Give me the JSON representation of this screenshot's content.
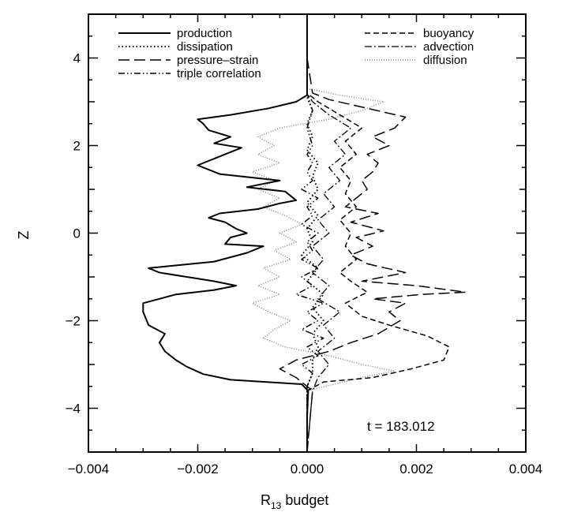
{
  "chart_data": {
    "type": "line",
    "title": "",
    "xlabel": "R",
    "xlabel_sub": "13",
    "xlabel_rest": " budget",
    "ylabel": "Z",
    "xlim": [
      -0.004,
      0.004
    ],
    "ylim": [
      -5,
      5
    ],
    "xticks": [
      -0.004,
      -0.002,
      0.0,
      0.002,
      0.004
    ],
    "xtick_labels": [
      "−0.004",
      "−0.002",
      "0.000",
      "0.002",
      "0.004"
    ],
    "yticks": [
      -4,
      -2,
      0,
      2,
      4
    ],
    "ytick_labels": [
      "−4",
      "−2",
      "0",
      "2",
      "4"
    ],
    "grid": false,
    "legend_placement": "top",
    "annotation": "t = 183.012",
    "series": [
      {
        "name": "production",
        "style": "solid",
        "points": [
          [
            0.0,
            -5.0
          ],
          [
            0.0,
            -4.2
          ],
          [
            2e-05,
            -3.6
          ],
          [
            -0.0001,
            -3.45
          ],
          [
            -0.0014,
            -3.35
          ],
          [
            -0.0019,
            -3.22
          ],
          [
            -0.0022,
            -3.05
          ],
          [
            -0.0024,
            -2.9
          ],
          [
            -0.0026,
            -2.7
          ],
          [
            -0.0027,
            -2.5
          ],
          [
            -0.0026,
            -2.3
          ],
          [
            -0.0029,
            -2.1
          ],
          [
            -0.003,
            -1.8
          ],
          [
            -0.003,
            -1.6
          ],
          [
            -0.0027,
            -1.5
          ],
          [
            -0.0024,
            -1.4
          ],
          [
            -0.0017,
            -1.3
          ],
          [
            -0.0013,
            -1.2
          ],
          [
            -0.0017,
            -1.1
          ],
          [
            -0.0022,
            -1.0
          ],
          [
            -0.0027,
            -0.9
          ],
          [
            -0.0029,
            -0.8
          ],
          [
            -0.0025,
            -0.75
          ],
          [
            -0.0017,
            -0.65
          ],
          [
            -0.0011,
            -0.45
          ],
          [
            -0.0008,
            -0.3
          ],
          [
            -0.0015,
            -0.25
          ],
          [
            -0.0014,
            -0.1
          ],
          [
            -0.0011,
            0.0
          ],
          [
            -0.0013,
            0.1
          ],
          [
            -0.0015,
            0.25
          ],
          [
            -0.0018,
            0.35
          ],
          [
            -0.0016,
            0.45
          ],
          [
            -0.0009,
            0.55
          ],
          [
            -0.0005,
            0.68
          ],
          [
            -0.0002,
            0.75
          ],
          [
            -0.0004,
            0.95
          ],
          [
            -0.0011,
            1.05
          ],
          [
            -0.0005,
            1.2
          ],
          [
            -0.0016,
            1.35
          ],
          [
            -0.002,
            1.55
          ],
          [
            -0.0015,
            1.8
          ],
          [
            -0.0012,
            1.95
          ],
          [
            -0.0017,
            2.05
          ],
          [
            -0.0014,
            2.2
          ],
          [
            -0.0018,
            2.35
          ],
          [
            -0.0019,
            2.5
          ],
          [
            -0.002,
            2.6
          ],
          [
            -0.0014,
            2.7
          ],
          [
            -0.0007,
            2.85
          ],
          [
            -0.0002,
            3.0
          ],
          [
            0.0,
            3.15
          ],
          [
            0.0,
            4.0
          ],
          [
            0.0,
            5.0
          ]
        ]
      },
      {
        "name": "dissipation",
        "style": "dotted",
        "points": [
          [
            0.0,
            -5.0
          ],
          [
            0.0,
            -3.5
          ],
          [
            0.0001,
            -3.2
          ],
          [
            0.0001,
            -2.9
          ],
          [
            0.0002,
            -2.6
          ],
          [
            0.0001,
            -2.3
          ],
          [
            0.0003,
            -2.0
          ],
          [
            0.0001,
            -1.7
          ],
          [
            0.0003,
            -1.4
          ],
          [
            0.0,
            -1.1
          ],
          [
            0.0002,
            -0.8
          ],
          [
            -0.0001,
            -0.5
          ],
          [
            0.0001,
            -0.2
          ],
          [
            0.0,
            0.1
          ],
          [
            0.0002,
            0.4
          ],
          [
            0.0,
            0.7
          ],
          [
            0.0002,
            1.0
          ],
          [
            0.0001,
            1.3
          ],
          [
            0.0002,
            1.6
          ],
          [
            0.0,
            1.9
          ],
          [
            0.0001,
            2.2
          ],
          [
            0.0,
            2.5
          ],
          [
            0.0001,
            2.8
          ],
          [
            0.0,
            3.1
          ],
          [
            0.0,
            4.0
          ],
          [
            0.0,
            5.0
          ]
        ]
      },
      {
        "name": "pressure–strain",
        "style": "longdash",
        "points": [
          [
            0.0,
            -5.0
          ],
          [
            0.0001,
            -3.6
          ],
          [
            -0.0002,
            -3.3
          ],
          [
            -0.0005,
            -3.1
          ],
          [
            -0.0002,
            -2.9
          ],
          [
            0.0004,
            -2.7
          ],
          [
            0.0008,
            -2.5
          ],
          [
            0.0013,
            -2.3
          ],
          [
            0.0017,
            -2.0
          ],
          [
            0.0015,
            -1.8
          ],
          [
            0.0018,
            -1.6
          ],
          [
            0.0012,
            -1.5
          ],
          [
            0.0021,
            -1.4
          ],
          [
            0.0029,
            -1.35
          ],
          [
            0.002,
            -1.2
          ],
          [
            0.001,
            -1.1
          ],
          [
            0.0018,
            -0.9
          ],
          [
            0.0011,
            -0.7
          ],
          [
            0.0008,
            -0.5
          ],
          [
            0.0012,
            -0.3
          ],
          [
            0.0009,
            -0.1
          ],
          [
            0.0014,
            0.05
          ],
          [
            0.0008,
            0.25
          ],
          [
            0.0013,
            0.45
          ],
          [
            0.0007,
            0.6
          ],
          [
            0.0009,
            0.8
          ],
          [
            0.0011,
            1.0
          ],
          [
            0.001,
            1.2
          ],
          [
            0.0012,
            1.4
          ],
          [
            0.0013,
            1.6
          ],
          [
            0.0011,
            1.8
          ],
          [
            0.0015,
            2.0
          ],
          [
            0.0012,
            2.2
          ],
          [
            0.0016,
            2.4
          ],
          [
            0.0018,
            2.65
          ],
          [
            0.0011,
            2.85
          ],
          [
            0.0004,
            3.05
          ],
          [
            0.0001,
            3.2
          ],
          [
            0.0,
            4.0
          ],
          [
            0.0,
            5.0
          ]
        ]
      },
      {
        "name": "triple correlation",
        "style": "dashdotdot",
        "points": [
          [
            0.0,
            -5.0
          ],
          [
            0.0,
            -3.5
          ],
          [
            0.0001,
            -3.2
          ],
          [
            -0.0001,
            -3.0
          ],
          [
            0.0002,
            -2.8
          ],
          [
            0.0,
            -2.6
          ],
          [
            0.0003,
            -2.4
          ],
          [
            -0.0001,
            -2.2
          ],
          [
            0.0002,
            -2.0
          ],
          [
            0.0,
            -1.8
          ],
          [
            0.0003,
            -1.6
          ],
          [
            -0.0002,
            -1.4
          ],
          [
            0.0001,
            -1.2
          ],
          [
            -0.0001,
            -1.0
          ],
          [
            0.0002,
            -0.8
          ],
          [
            -0.0001,
            -0.6
          ],
          [
            0.0001,
            -0.4
          ],
          [
            0.0,
            -0.2
          ],
          [
            0.0002,
            0.0
          ],
          [
            -0.0001,
            0.2
          ],
          [
            0.0001,
            0.4
          ],
          [
            0.0,
            0.6
          ],
          [
            0.0002,
            0.8
          ],
          [
            -0.0001,
            1.0
          ],
          [
            0.0001,
            1.2
          ],
          [
            0.0,
            1.4
          ],
          [
            0.0001,
            1.6
          ],
          [
            0.0,
            1.8
          ],
          [
            0.0001,
            2.0
          ],
          [
            0.0,
            2.4
          ],
          [
            0.0001,
            2.8
          ],
          [
            0.0,
            3.2
          ],
          [
            0.0,
            5.0
          ]
        ]
      },
      {
        "name": "buoyancy",
        "style": "dash",
        "points": [
          [
            0.0,
            -5.0
          ],
          [
            0.0,
            -3.6
          ],
          [
            0.0003,
            -3.4
          ],
          [
            0.0012,
            -3.3
          ],
          [
            0.0019,
            -3.1
          ],
          [
            0.0025,
            -2.9
          ],
          [
            0.0026,
            -2.6
          ],
          [
            0.0022,
            -2.35
          ],
          [
            0.0015,
            -2.1
          ],
          [
            0.001,
            -1.9
          ],
          [
            0.0007,
            -1.6
          ],
          [
            0.0011,
            -1.35
          ],
          [
            0.0008,
            -1.1
          ],
          [
            0.0006,
            -0.9
          ],
          [
            0.0009,
            -0.6
          ],
          [
            0.0007,
            -0.3
          ],
          [
            0.0008,
            0.0
          ],
          [
            0.0006,
            0.3
          ],
          [
            0.0009,
            0.6
          ],
          [
            0.0007,
            0.9
          ],
          [
            0.0008,
            1.2
          ],
          [
            0.0006,
            1.5
          ],
          [
            0.0009,
            1.8
          ],
          [
            0.0007,
            2.1
          ],
          [
            0.001,
            2.4
          ],
          [
            0.0006,
            2.7
          ],
          [
            0.0002,
            3.0
          ],
          [
            0.0,
            3.2
          ],
          [
            0.0,
            5.0
          ]
        ]
      },
      {
        "name": "advection",
        "style": "dashdot",
        "points": [
          [
            0.0,
            -5.0
          ],
          [
            0.0001,
            -3.6
          ],
          [
            0.0002,
            -3.3
          ],
          [
            0.0004,
            -3.0
          ],
          [
            0.0002,
            -2.7
          ],
          [
            0.0005,
            -2.4
          ],
          [
            0.0003,
            -2.1
          ],
          [
            0.0006,
            -1.8
          ],
          [
            0.0002,
            -1.5
          ],
          [
            0.0004,
            -1.2
          ],
          [
            0.0001,
            -0.9
          ],
          [
            0.0003,
            -0.6
          ],
          [
            0.0001,
            -0.3
          ],
          [
            0.0004,
            0.0
          ],
          [
            0.0002,
            0.3
          ],
          [
            0.0005,
            0.6
          ],
          [
            0.0003,
            0.9
          ],
          [
            0.0006,
            1.2
          ],
          [
            0.0004,
            1.5
          ],
          [
            0.0007,
            1.8
          ],
          [
            0.0005,
            2.1
          ],
          [
            0.0008,
            2.4
          ],
          [
            0.0004,
            2.7
          ],
          [
            0.0001,
            3.0
          ],
          [
            0.0,
            3.2
          ],
          [
            0.0,
            5.0
          ]
        ]
      },
      {
        "name": "diffusion",
        "style": "finedot",
        "points": [
          [
            0.0,
            -5.0
          ],
          [
            0.0,
            -3.6
          ],
          [
            0.001,
            -3.3
          ],
          [
            0.0016,
            -3.15
          ],
          [
            0.001,
            -3.0
          ],
          [
            0.0004,
            -2.8
          ],
          [
            -0.0004,
            -2.6
          ],
          [
            -0.0008,
            -2.4
          ],
          [
            -0.0006,
            -2.2
          ],
          [
            -0.0003,
            -2.0
          ],
          [
            -0.0007,
            -1.8
          ],
          [
            -0.001,
            -1.6
          ],
          [
            -0.0005,
            -1.4
          ],
          [
            -0.0009,
            -1.2
          ],
          [
            -0.0005,
            -1.0
          ],
          [
            -0.0008,
            -0.8
          ],
          [
            -0.0003,
            -0.6
          ],
          [
            -0.0006,
            -0.4
          ],
          [
            -0.0002,
            -0.2
          ],
          [
            -0.0005,
            0.0
          ],
          [
            -0.0001,
            0.2
          ],
          [
            -0.0004,
            0.4
          ],
          [
            -0.0008,
            0.6
          ],
          [
            -0.0005,
            0.8
          ],
          [
            -0.0009,
            1.0
          ],
          [
            -0.0006,
            1.2
          ],
          [
            -0.001,
            1.4
          ],
          [
            -0.0005,
            1.6
          ],
          [
            -0.0009,
            1.8
          ],
          [
            -0.0006,
            2.0
          ],
          [
            -0.0009,
            2.2
          ],
          [
            -0.0005,
            2.4
          ],
          [
            0.0004,
            2.6
          ],
          [
            0.001,
            2.8
          ],
          [
            0.0014,
            3.0
          ],
          [
            0.0006,
            3.15
          ],
          [
            0.0,
            3.3
          ],
          [
            0.0,
            5.0
          ]
        ]
      }
    ]
  }
}
